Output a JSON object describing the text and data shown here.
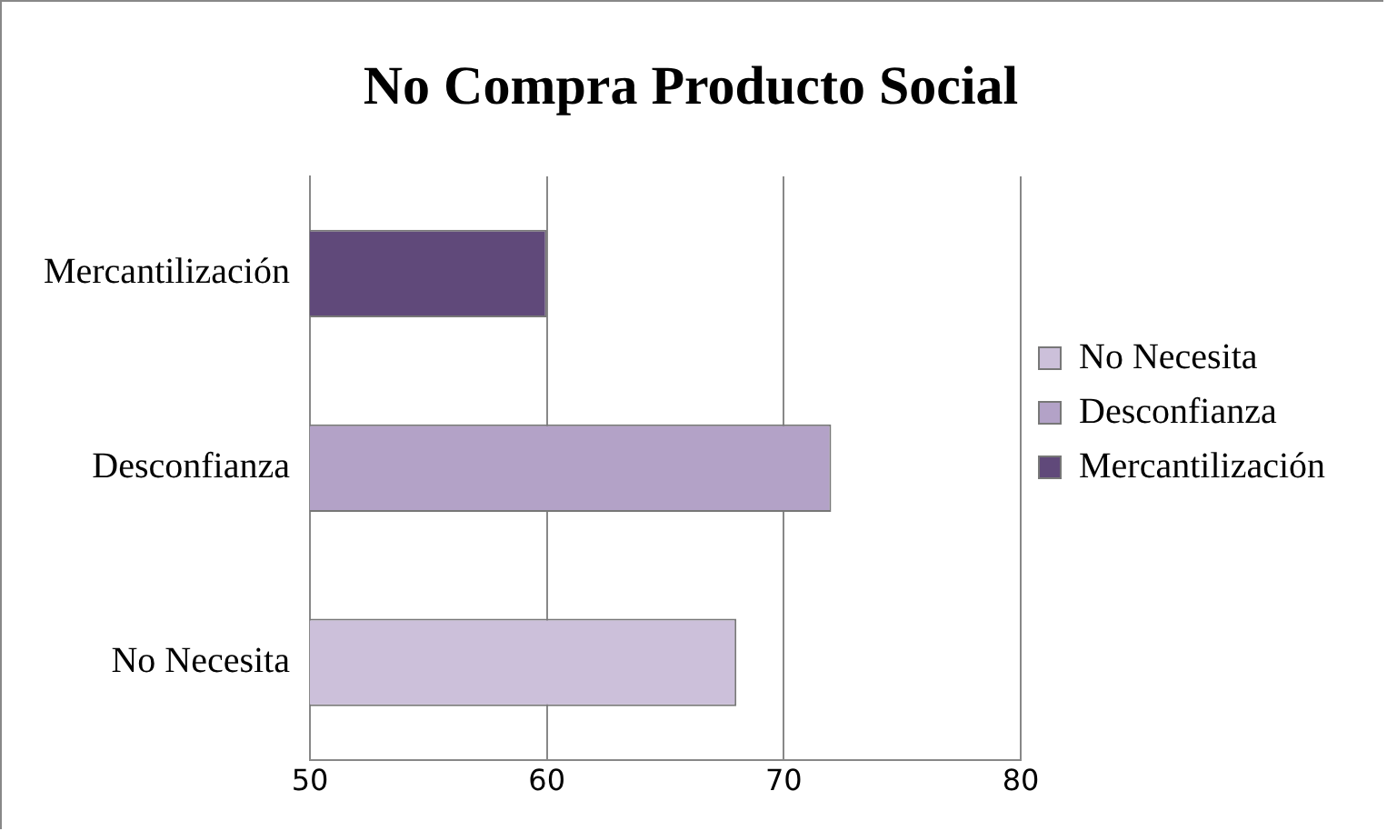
{
  "chart_data": {
    "type": "bar",
    "orientation": "horizontal",
    "title": "No Compra Producto Social",
    "categories": [
      "Mercantilización",
      "Desconfianza",
      "No Necesita"
    ],
    "series": [
      {
        "name": "No Necesita",
        "color": "#ccc0da",
        "values": [
          null,
          null,
          68
        ]
      },
      {
        "name": "Desconfianza",
        "color": "#b3a2c7",
        "values": [
          null,
          72,
          null
        ]
      },
      {
        "name": "Mercantilización",
        "color": "#60497a",
        "values": [
          60,
          null,
          null
        ]
      }
    ],
    "xlim": [
      50,
      80
    ],
    "xticks": [
      50,
      60,
      70,
      80
    ],
    "grid": "x",
    "legend": "right"
  }
}
